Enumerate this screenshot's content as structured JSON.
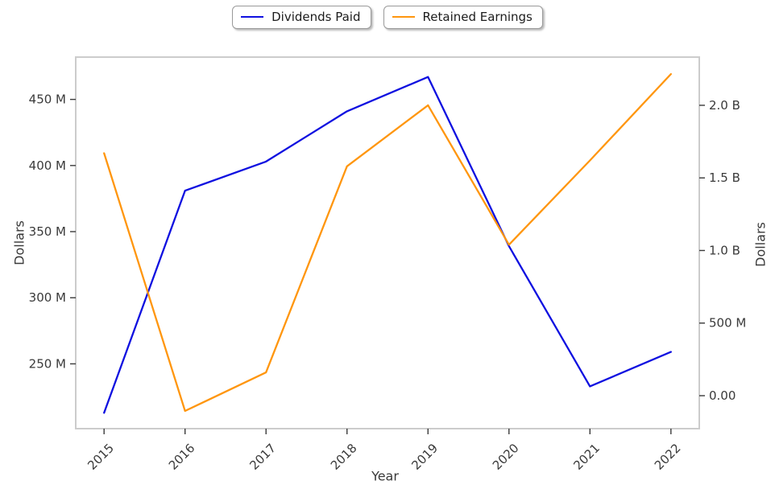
{
  "legend": {
    "items": [
      {
        "label": "Dividends Paid",
        "color": "#0f10e0"
      },
      {
        "label": "Retained Earnings",
        "color": "#ff960e"
      }
    ]
  },
  "axes": {
    "x": {
      "label": "Year",
      "tick_labels": [
        "2015",
        "2016",
        "2017",
        "2018",
        "2019",
        "2020",
        "2021",
        "2022"
      ]
    },
    "y_left": {
      "label": "Dollars",
      "ticks": [
        {
          "value": 250,
          "label": "250 M"
        },
        {
          "value": 300,
          "label": "300 M"
        },
        {
          "value": 350,
          "label": "350 M"
        },
        {
          "value": 400,
          "label": "400 M"
        },
        {
          "value": 450,
          "label": "450 M"
        }
      ]
    },
    "y_right": {
      "label": "Dollars",
      "ticks": [
        {
          "value": 0,
          "label": "0.00"
        },
        {
          "value": 500,
          "label": "500 M"
        },
        {
          "value": 1000,
          "label": "1.0 B"
        },
        {
          "value": 1500,
          "label": "1.5 B"
        },
        {
          "value": 2000,
          "label": "2.0 B"
        }
      ]
    }
  },
  "chart_data": {
    "type": "line",
    "title": "",
    "xlabel": "Year",
    "ylabel_left": "Dollars",
    "ylabel_right": "Dollars",
    "x": [
      2015,
      2016,
      2017,
      2018,
      2019,
      2020,
      2021,
      2022
    ],
    "x_range": [
      2014.65,
      2022.35
    ],
    "y_left_range_million": [
      201,
      482
    ],
    "y_right_range_million": [
      -227,
      2332
    ],
    "grid": false,
    "legend_position": "top-center",
    "units": "US dollars; values stored in millions",
    "series": [
      {
        "name": "Dividends Paid",
        "axis": "left",
        "color": "#0f10e0",
        "values_million": [
          213,
          381,
          403,
          441,
          467,
          339,
          233,
          259
        ]
      },
      {
        "name": "Retained Earnings",
        "axis": "right",
        "color": "#ff960e",
        "values_million": [
          1670,
          -105,
          160,
          1580,
          2000,
          1040,
          1620,
          2215
        ]
      }
    ]
  }
}
